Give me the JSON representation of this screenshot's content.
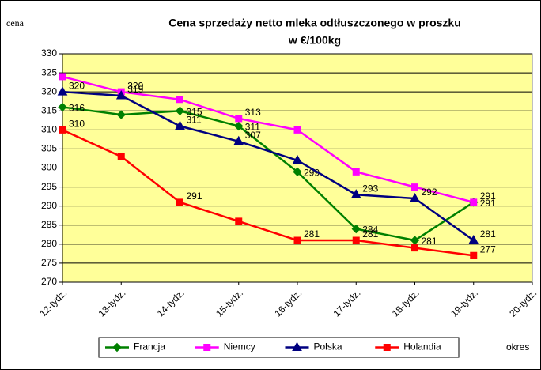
{
  "chart_data": {
    "type": "line",
    "title": "Cena sprzedaży netto mleka odtłuszczonego w proszku",
    "subtitle": "w €/100kg",
    "y_label": "cena",
    "x_label": "okres",
    "categories": [
      "12-tydz.",
      "13-tydz.",
      "14-tydz.",
      "15-tydz.",
      "16-tydz.",
      "17-tydz.",
      "18-tydz.",
      "19-tydz.",
      "20-tydz."
    ],
    "series": [
      {
        "name": "Francja",
        "color": "#008000",
        "marker": "diamond",
        "values": [
          316,
          314,
          315,
          311,
          299,
          284,
          281,
          291,
          null
        ],
        "value_labels": [
          "316",
          null,
          "315",
          "311",
          "299",
          "284",
          "281",
          "291",
          null
        ]
      },
      {
        "name": "Niemcy",
        "color": "#ff00ff",
        "marker": "square",
        "values": [
          324,
          320,
          318,
          313,
          310,
          299,
          295,
          291,
          null
        ],
        "value_labels": [
          null,
          "320",
          null,
          "313",
          null,
          null,
          null,
          "291",
          null
        ]
      },
      {
        "name": "Polska",
        "color": "#000080",
        "marker": "triangle",
        "values": [
          320,
          319,
          311,
          307,
          302,
          293,
          292,
          281,
          null
        ],
        "value_labels": [
          "320",
          "319",
          "311",
          "307",
          null,
          "293",
          "292",
          "281",
          null
        ]
      },
      {
        "name": "Holandia",
        "color": "#ff0000",
        "marker": "square",
        "values": [
          310,
          303,
          291,
          286,
          281,
          281,
          279,
          277,
          null
        ],
        "value_labels": [
          "310",
          null,
          "291",
          null,
          "281",
          "281",
          null,
          "277",
          null
        ]
      }
    ],
    "ylim": [
      270,
      330
    ],
    "yticks": [
      270,
      275,
      280,
      285,
      290,
      295,
      300,
      305,
      310,
      315,
      320,
      325,
      330
    ],
    "grid": true,
    "legend": "bottom",
    "plot_background": "#ffff99"
  }
}
